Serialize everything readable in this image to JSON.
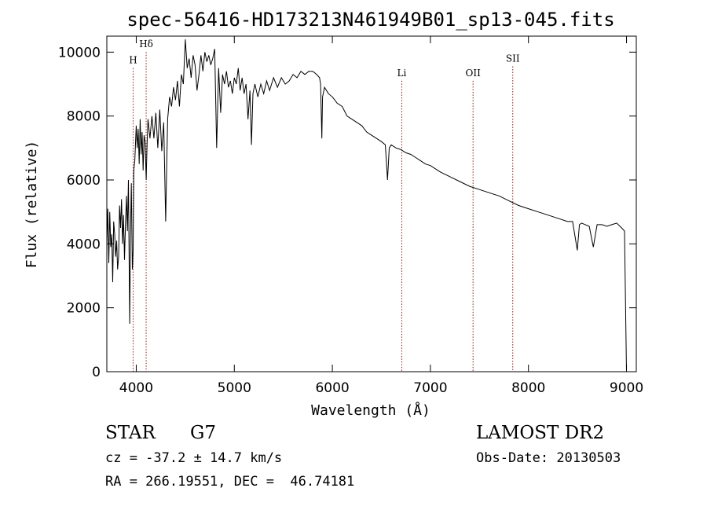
{
  "chart_data": {
    "type": "line",
    "title": "spec-56416-HD173213N461949B01_sp13-045.fits",
    "xlabel": "Wavelength (Å)",
    "ylabel": "Flux (relative)",
    "xlim": [
      3700,
      9100
    ],
    "ylim": [
      0,
      10500
    ],
    "xticks": [
      4000,
      5000,
      6000,
      7000,
      8000,
      9000
    ],
    "yticks": [
      0,
      2000,
      4000,
      6000,
      8000,
      10000
    ],
    "grid": false,
    "series": [
      {
        "x": [
          3700,
          3710,
          3720,
          3730,
          3740,
          3750,
          3760,
          3770,
          3780,
          3790,
          3800,
          3810,
          3820,
          3830,
          3840,
          3850,
          3860,
          3870,
          3880,
          3890,
          3900,
          3910,
          3920,
          3933,
          3940,
          3950,
          3960,
          3968,
          3975,
          3985,
          4000,
          4010,
          4020,
          4030,
          4040,
          4050,
          4060,
          4070,
          4080,
          4090,
          4101,
          4110,
          4120,
          4140,
          4160,
          4180,
          4200,
          4220,
          4240,
          4260,
          4280,
          4300,
          4310,
          4320,
          4340,
          4360,
          4380,
          4400,
          4420,
          4440,
          4460,
          4480,
          4500,
          4520,
          4540,
          4560,
          4580,
          4600,
          4620,
          4640,
          4660,
          4680,
          4700,
          4720,
          4740,
          4760,
          4780,
          4800,
          4820,
          4840,
          4861,
          4880,
          4900,
          4920,
          4940,
          4960,
          4980,
          5000,
          5020,
          5040,
          5060,
          5080,
          5100,
          5120,
          5140,
          5160,
          5175,
          5190,
          5210,
          5240,
          5270,
          5300,
          5330,
          5360,
          5400,
          5440,
          5480,
          5520,
          5560,
          5600,
          5640,
          5680,
          5720,
          5760,
          5800,
          5840,
          5870,
          5880,
          5893,
          5900,
          5920,
          5960,
          6000,
          6050,
          6100,
          6150,
          6200,
          6250,
          6300,
          6350,
          6400,
          6450,
          6500,
          6540,
          6563,
          6580,
          6600,
          6650,
          6700,
          6750,
          6800,
          6850,
          6900,
          6950,
          7000,
          7100,
          7200,
          7300,
          7400,
          7500,
          7600,
          7700,
          7800,
          7900,
          8000,
          8100,
          8200,
          8300,
          8400,
          8450,
          8498,
          8520,
          8542,
          8580,
          8620,
          8662,
          8700,
          8750,
          8800,
          8850,
          8900,
          8950,
          8980,
          9000
        ],
        "y": [
          4000,
          5100,
          3400,
          5000,
          3900,
          4300,
          2800,
          4700,
          4300,
          3600,
          4100,
          3200,
          3600,
          5200,
          4500,
          5400,
          4000,
          4900,
          3500,
          4600,
          5500,
          4400,
          6000,
          1500,
          4100,
          5900,
          3200,
          3800,
          6300,
          6600,
          7700,
          7000,
          7600,
          6500,
          7900,
          6800,
          7500,
          6300,
          7400,
          7200,
          6000,
          7100,
          7900,
          7300,
          8000,
          7300,
          8100,
          7000,
          8200,
          6900,
          7800,
          4700,
          6300,
          7900,
          8600,
          8300,
          8900,
          8500,
          9100,
          8300,
          9300,
          9000,
          10400,
          9500,
          9800,
          9200,
          9900,
          9600,
          8800,
          9300,
          9900,
          9400,
          10000,
          9700,
          9900,
          9600,
          9800,
          10100,
          7000,
          9500,
          8100,
          9300,
          9000,
          9400,
          8900,
          9100,
          8700,
          9200,
          9000,
          9500,
          8800,
          9200,
          8700,
          9000,
          7900,
          8800,
          7100,
          8700,
          9000,
          8600,
          9000,
          8700,
          9100,
          8800,
          9200,
          8900,
          9200,
          9000,
          9100,
          9300,
          9200,
          9400,
          9300,
          9400,
          9400,
          9300,
          9200,
          9000,
          7300,
          8600,
          8900,
          8700,
          8600,
          8400,
          8300,
          8000,
          7900,
          7800,
          7700,
          7500,
          7400,
          7300,
          7200,
          7100,
          6000,
          7000,
          7100,
          7000,
          6950,
          6850,
          6800,
          6700,
          6600,
          6500,
          6450,
          6250,
          6100,
          5950,
          5800,
          5700,
          5600,
          5500,
          5350,
          5200,
          5100,
          5000,
          4900,
          4800,
          4700,
          4700,
          3800,
          4600,
          4650,
          4600,
          4550,
          3900,
          4600,
          4600,
          4550,
          4600,
          4650,
          4500,
          4400,
          0
        ]
      }
    ],
    "annotations": [
      {
        "label": "H",
        "x": 3968,
        "label_y": 9650
      },
      {
        "label": "Hδ",
        "x": 4101,
        "label_y": 10150
      },
      {
        "label": "Li",
        "x": 6708,
        "label_y": 9250
      },
      {
        "label": "OII",
        "x": 7435,
        "label_y": 9250
      },
      {
        "label": "SII",
        "x": 7840,
        "label_y": 9700
      }
    ],
    "line_color": "#000000",
    "marker_color": "#8b1a1a"
  },
  "info": {
    "object_class": "STAR",
    "subclass": "G7",
    "survey": "LAMOST DR2",
    "cz": "cz = -37.2 ± 14.7 km/s",
    "obs_date": "Obs-Date: 20130503",
    "coords": "RA = 266.19551, DEC =  46.74181"
  }
}
